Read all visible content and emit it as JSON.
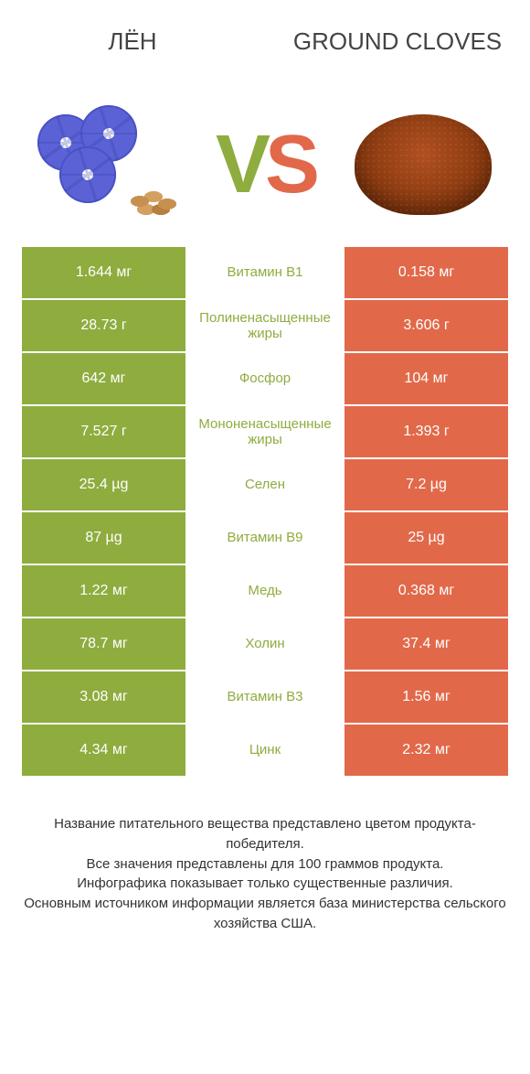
{
  "colors": {
    "left": "#8fac3f",
    "right": "#e1694a",
    "mid_text_left": "#8fac3f",
    "mid_text_right": "#e1694a"
  },
  "header": {
    "left": "ЛЁН",
    "right": "GROUND CLOVES"
  },
  "vs": {
    "v": "V",
    "s": "S"
  },
  "rows": [
    {
      "left": "1.644 мг",
      "mid": "Витамин B1",
      "right": "0.158 мг",
      "winner": "left"
    },
    {
      "left": "28.73 г",
      "mid": "Полиненасыщенные жиры",
      "right": "3.606 г",
      "winner": "left"
    },
    {
      "left": "642 мг",
      "mid": "Фосфор",
      "right": "104 мг",
      "winner": "left"
    },
    {
      "left": "7.527 г",
      "mid": "Мононенасыщенные жиры",
      "right": "1.393 г",
      "winner": "left"
    },
    {
      "left": "25.4 µg",
      "mid": "Селен",
      "right": "7.2 µg",
      "winner": "left"
    },
    {
      "left": "87 µg",
      "mid": "Витамин B9",
      "right": "25 µg",
      "winner": "left"
    },
    {
      "left": "1.22 мг",
      "mid": "Медь",
      "right": "0.368 мг",
      "winner": "left"
    },
    {
      "left": "78.7 мг",
      "mid": "Холин",
      "right": "37.4 мг",
      "winner": "left"
    },
    {
      "left": "3.08 мг",
      "mid": "Витамин B3",
      "right": "1.56 мг",
      "winner": "left"
    },
    {
      "left": "4.34 мг",
      "mid": "Цинк",
      "right": "2.32 мг",
      "winner": "left"
    }
  ],
  "footer": [
    "Название питательного вещества представлено цветом продукта-победителя.",
    "Все значения представлены для 100 граммов продукта.",
    "Инфографика показывает только существенные различия.",
    "Основным источником информации является база министерства сельского хозяйства США."
  ]
}
